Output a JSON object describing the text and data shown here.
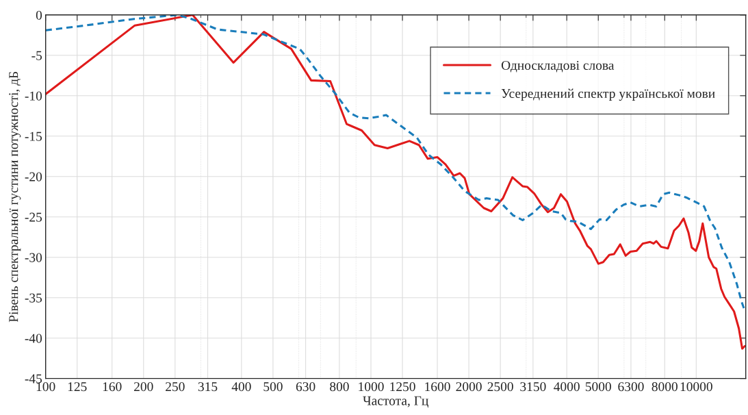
{
  "chart_data": {
    "type": "line",
    "xlabel": "Частота, Гц",
    "ylabel": "Рівень спектральної густини потужності, дБ",
    "log": "x",
    "grid": true,
    "legend": "top right",
    "xlim": [
      100,
      14200
    ],
    "xticks": [
      100,
      125,
      160,
      200,
      250,
      315,
      400,
      500,
      630,
      800,
      1000,
      1250,
      1600,
      2000,
      2500,
      3150,
      4000,
      5000,
      6300,
      8000,
      10000
    ],
    "ylim": [
      -45,
      0
    ],
    "yticks": [
      -45,
      -40,
      -35,
      -30,
      -25,
      -20,
      -15,
      -10,
      -5,
      0
    ],
    "series": [
      {
        "name": "Односкладові слова",
        "color": "#e01b1b",
        "line_style": "solid",
        "x": [
          100,
          188,
          283,
          378,
          469,
          569,
          655,
          750,
          842,
          937,
          1026,
          1125,
          1227,
          1313,
          1405,
          1496,
          1600,
          1696,
          1797,
          1877,
          1942,
          2008,
          2223,
          2344,
          2545,
          2722,
          2926,
          3027,
          3177,
          3350,
          3499,
          3654,
          3835,
          4006,
          4244,
          4389,
          4630,
          4744,
          5003,
          5175,
          5404,
          5590,
          5838,
          6067,
          6278,
          6556,
          6847,
          7219,
          7395,
          7539,
          7798,
          8185,
          8550,
          8844,
          9147,
          9461,
          9692,
          9977,
          10220,
          10470,
          10930,
          11310,
          11530,
          11930,
          12220,
          12640,
          13070,
          13520,
          13850,
          14100
        ],
        "values": [
          -9.8,
          -1.3,
          0,
          -5.9,
          -2.1,
          -4.2,
          -8.1,
          -8.2,
          -13.5,
          -14.3,
          -16.1,
          -16.5,
          -16,
          -15.6,
          -16.1,
          -17.8,
          -17.6,
          -18.5,
          -19.9,
          -19.6,
          -20.2,
          -22.2,
          -23.9,
          -24.3,
          -22.7,
          -20.1,
          -21.2,
          -21.3,
          -22.1,
          -23.5,
          -24.4,
          -23.9,
          -22.2,
          -23.1,
          -25.8,
          -26.7,
          -28.6,
          -29,
          -30.8,
          -30.6,
          -29.7,
          -29.6,
          -28.4,
          -29.8,
          -29.3,
          -29.2,
          -28.3,
          -28.1,
          -28.3,
          -28,
          -28.7,
          -28.9,
          -26.7,
          -26.1,
          -25.2,
          -26.9,
          -28.8,
          -29.2,
          -28,
          -25.8,
          -30,
          -31.2,
          -31.4,
          -33.9,
          -34.9,
          -35.8,
          -36.7,
          -38.8,
          -41.3,
          -41
        ]
      },
      {
        "name": "Усереднений спектр української мови",
        "color": "#1a7dbb",
        "line_style": "dashed",
        "x": [
          100,
          127,
          187,
          254,
          281,
          338,
          357,
          467,
          553,
          604,
          633,
          701,
          776,
          859,
          919,
          983,
          1051,
          1114,
          1204,
          1385,
          1503,
          1639,
          1780,
          1942,
          2148,
          2266,
          2460,
          2735,
          2926,
          3131,
          3350,
          3584,
          3835,
          3966,
          4103,
          4327,
          4744,
          5050,
          5301,
          5671,
          5981,
          6278,
          6684,
          7151,
          7539,
          7912,
          8265,
          8844,
          9325,
          10120,
          10570,
          11040,
          11420,
          11980,
          12640,
          13330,
          13790,
          14100
        ],
        "values": [
          -1.9,
          -1.4,
          -0.5,
          0,
          -0.5,
          -1.8,
          -1.9,
          -2.4,
          -3.6,
          -4.2,
          -5.2,
          -7.6,
          -9.7,
          -12.1,
          -12.7,
          -12.8,
          -12.6,
          -12.4,
          -13.4,
          -15.2,
          -17.3,
          -18.5,
          -20,
          -21.8,
          -22.9,
          -22.7,
          -22.9,
          -24.8,
          -25.4,
          -24.6,
          -23.5,
          -24.3,
          -24.5,
          -25.3,
          -25.5,
          -25.6,
          -26.5,
          -25.3,
          -25.4,
          -24.1,
          -23.5,
          -23.2,
          -23.7,
          -23.5,
          -23.7,
          -22.2,
          -22,
          -22.3,
          -22.6,
          -23.3,
          -23.7,
          -25.5,
          -26.4,
          -28.8,
          -30.6,
          -33.3,
          -35.5,
          -36.6
        ]
      }
    ]
  }
}
